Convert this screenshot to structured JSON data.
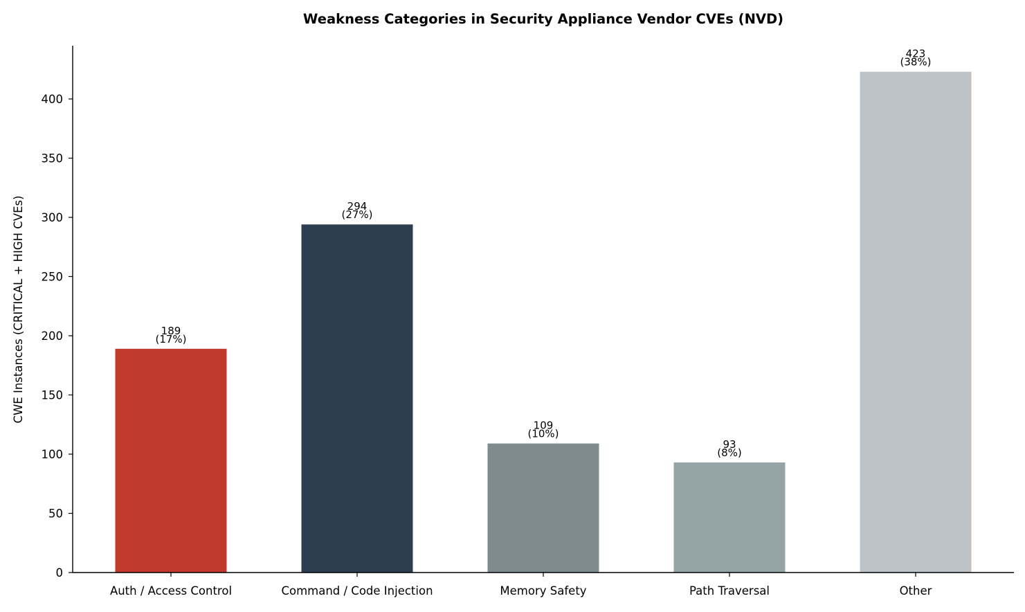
{
  "chart_data": {
    "type": "bar",
    "title": "Weakness Categories in Security Appliance Vendor CVEs (NVD)",
    "xlabel": "",
    "ylabel": "CWE Instances (CRITICAL + HIGH CVEs)",
    "categories": [
      "Auth / Access Control",
      "Command / Code Injection",
      "Memory Safety",
      "Path Traversal",
      "Other"
    ],
    "values": [
      189,
      294,
      109,
      93,
      423
    ],
    "value_labels": [
      "189",
      "294",
      "109",
      "93",
      "423"
    ],
    "percent_labels": [
      "(17%)",
      "(27%)",
      "(10%)",
      "(8%)",
      "(38%)"
    ],
    "colors": [
      "#c0392b",
      "#2c3e50",
      "#7f8c8d",
      "#95a5a6",
      "#bdc3c7"
    ],
    "ylim": [
      0,
      445
    ],
    "yticks": [
      0,
      50,
      100,
      150,
      200,
      250,
      300,
      350,
      400
    ],
    "ytick_labels": [
      "0",
      "50",
      "100",
      "150",
      "200",
      "250",
      "300",
      "350",
      "400"
    ],
    "grid": false,
    "legend": "none"
  }
}
